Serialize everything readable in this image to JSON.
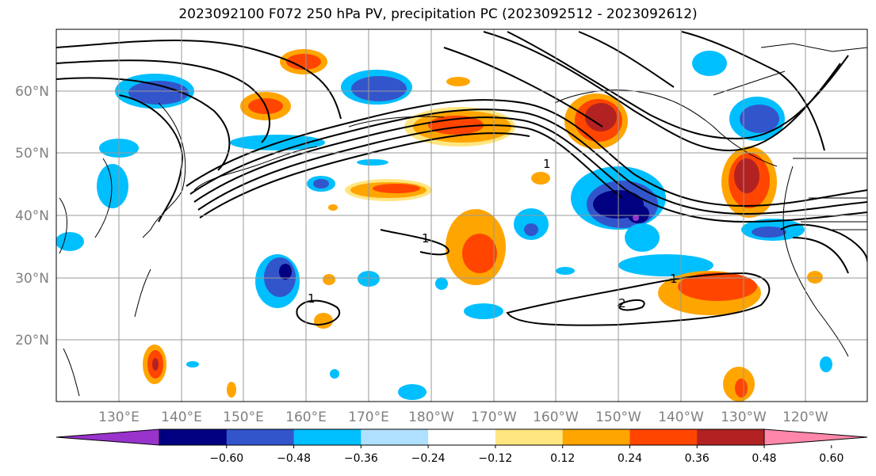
{
  "title": "2023092100 F072 250 hPa PV, precipitation PC (2023092512 - 2023092612)",
  "lon_labels": [
    "130°E",
    "140°E",
    "150°E",
    "160°E",
    "170°E",
    "180°W",
    "170°W",
    "160°W",
    "150°W",
    "140°W",
    "130°W",
    "120°W"
  ],
  "lat_labels": [
    "60°N",
    "50°N",
    "40°N",
    "30°N",
    "20°N"
  ],
  "colorbar": {
    "colors": [
      "#9933cc",
      "#000080",
      "#3355cc",
      "#00bfff",
      "#b0e0ff",
      "#ffffff",
      "#ffe680",
      "#ffa500",
      "#ff4500",
      "#b22222",
      "#ff88aa"
    ],
    "ticks": [
      "−0.60",
      "−0.48",
      "−0.36",
      "−0.24",
      "−0.12",
      "0.12",
      "0.24",
      "0.36",
      "0.48",
      "0.60"
    ]
  },
  "contour_labels": [
    "1",
    "1",
    "1",
    "1",
    "2"
  ],
  "colors": {
    "grid": "#999999",
    "contour": "#000000",
    "coast": "#000000"
  }
}
